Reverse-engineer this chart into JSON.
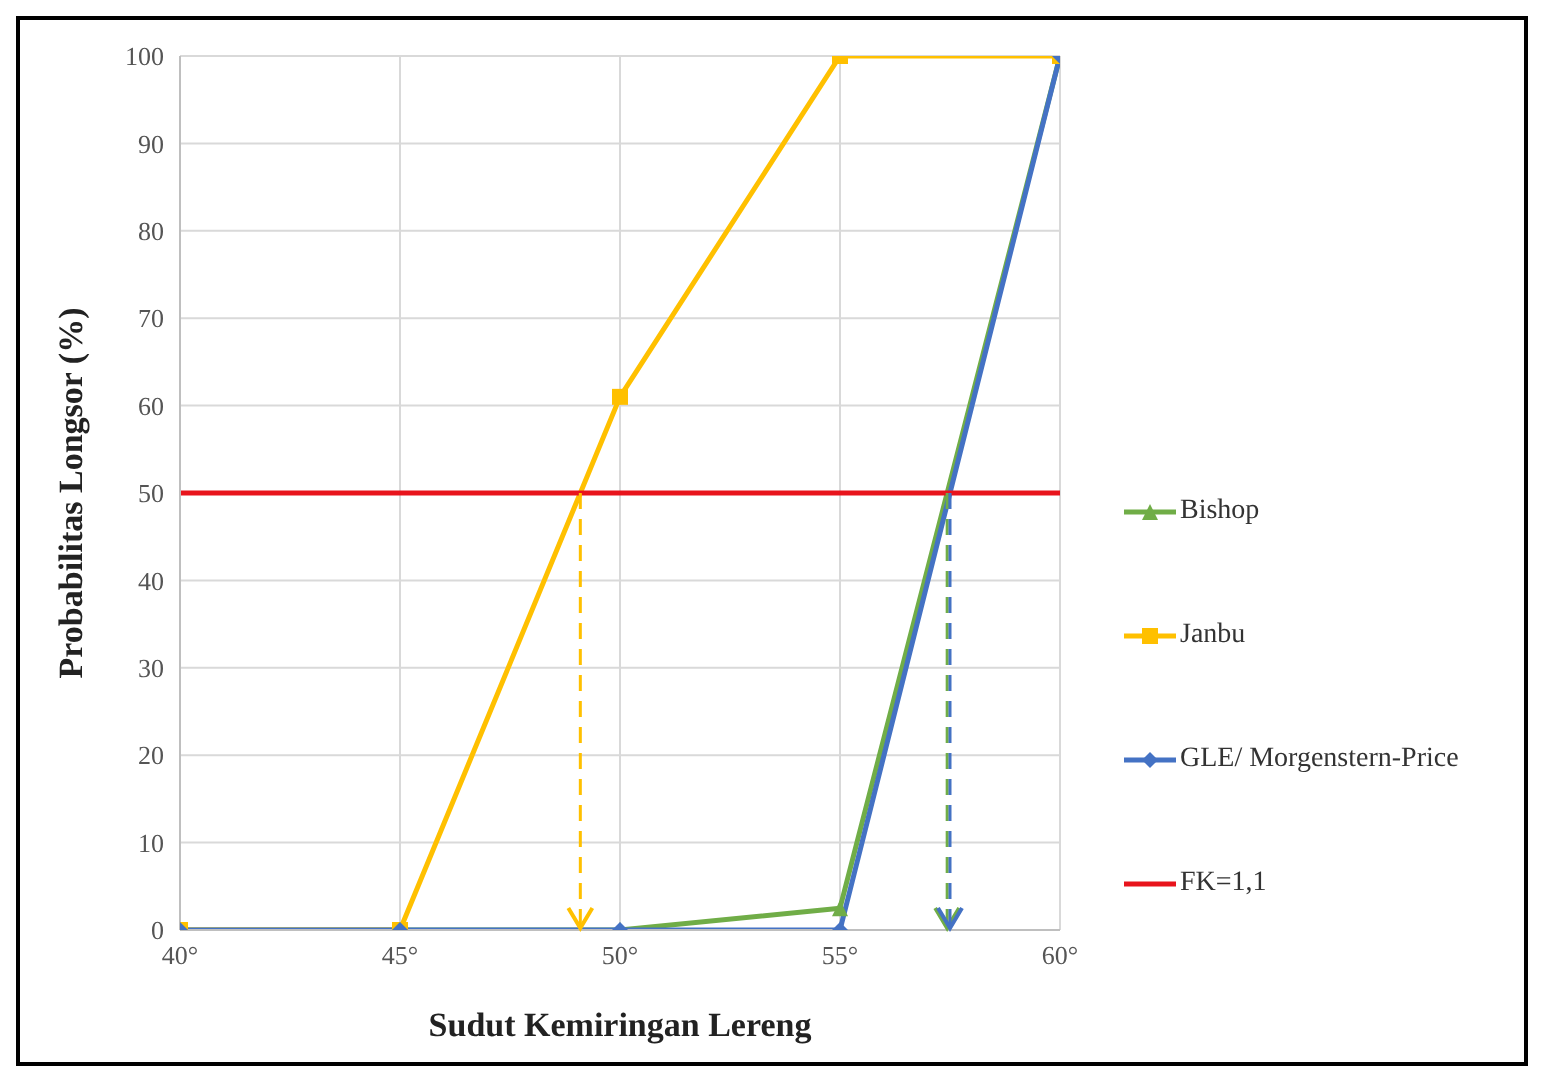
{
  "chart_data": {
    "type": "line",
    "xlabel": "Sudut Kemiringan Lereng",
    "ylabel": "Probabilitas Longsor (%)",
    "x": [
      40,
      45,
      50,
      55,
      60
    ],
    "xlim": [
      40,
      60
    ],
    "xticks": [
      {
        "value": 40,
        "label": "40°"
      },
      {
        "value": 45,
        "label": "45°"
      },
      {
        "value": 50,
        "label": "50°"
      },
      {
        "value": 55,
        "label": "55°"
      },
      {
        "value": 60,
        "label": "60°"
      }
    ],
    "ylim": [
      0,
      100
    ],
    "yticks": [
      0,
      10,
      20,
      30,
      40,
      50,
      60,
      70,
      80,
      90,
      100
    ],
    "grid": true,
    "legend": "right",
    "series": [
      {
        "name": "Bishop",
        "color": "#70ad47",
        "values": [
          0,
          0,
          0,
          2.5,
          100
        ],
        "marker": "triangle"
      },
      {
        "name": "Janbu",
        "color": "#ffc000",
        "values": [
          0,
          0,
          61,
          100,
          100
        ],
        "marker": "square"
      },
      {
        "name": "GLE/ Morgenstern-Price",
        "color": "#4472c4",
        "values": [
          0,
          0,
          0,
          0,
          100
        ],
        "marker": "diamond"
      },
      {
        "name": "FK=1,1",
        "color": "#e8141c",
        "x": [
          40,
          60
        ],
        "values": [
          50,
          50
        ],
        "marker": "none"
      }
    ]
  }
}
